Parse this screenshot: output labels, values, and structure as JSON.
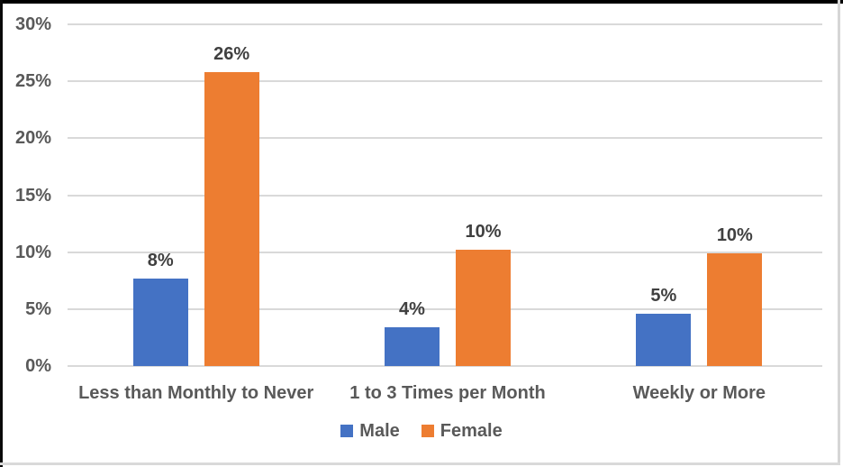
{
  "chart_data": {
    "type": "bar",
    "title": "",
    "xlabel": "",
    "ylabel": "",
    "categories": [
      "Less than Monthly to Never",
      "1 to 3 Times per Month",
      "Weekly or More"
    ],
    "series": [
      {
        "name": "Male",
        "color": "#4472C4",
        "values": [
          8,
          4,
          5
        ],
        "labels": [
          "8%",
          "4%",
          "5%"
        ],
        "bar_heights_pct": [
          7.7,
          3.4,
          4.6
        ]
      },
      {
        "name": "Female",
        "color": "#ED7D31",
        "values": [
          26,
          10,
          10
        ],
        "labels": [
          "26%",
          "10%",
          "10%"
        ],
        "bar_heights_pct": [
          25.8,
          10.2,
          9.9
        ]
      }
    ],
    "ylim": [
      0,
      30
    ],
    "ytick_step": 5,
    "ytick_labels": [
      "0%",
      "5%",
      "10%",
      "15%",
      "20%",
      "25%",
      "30%"
    ],
    "grid": true,
    "legend_position": "bottom"
  },
  "legend": {
    "items": [
      {
        "label": "Male",
        "color": "#4472C4"
      },
      {
        "label": "Female",
        "color": "#ED7D31"
      }
    ]
  },
  "colors": {
    "male_bar": "#4472C4",
    "female_bar": "#ED7D31",
    "gridline": "#D9D9D9",
    "axis_text": "#595959",
    "data_label_text": "#404040",
    "frame_top_left": "#000000",
    "frame_bottom_right": "#D9D9D9",
    "background": "#FFFFFF"
  }
}
